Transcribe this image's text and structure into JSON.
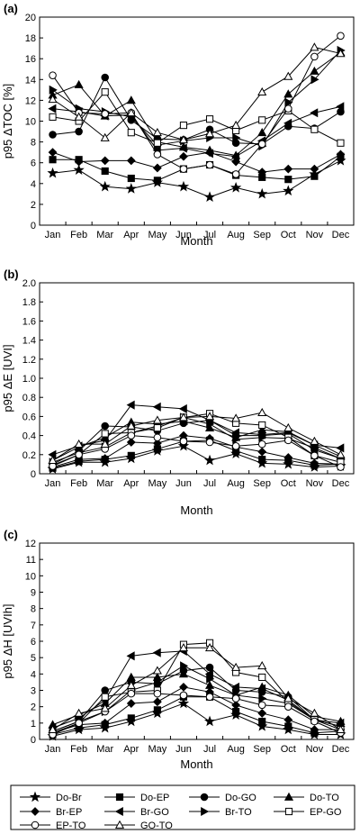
{
  "series_names": [
    "Do-Br",
    "Do-EP",
    "Do-GO",
    "Do-TO",
    "Br-EP",
    "Br-GO",
    "Br-TO",
    "EP-GO",
    "EP-TO",
    "GO-TO"
  ],
  "series_markers": [
    "star",
    "square-filled",
    "circle-filled",
    "triangle-filled",
    "diamond-filled",
    "triangle-left-filled",
    "triangle-right-filled",
    "square-open",
    "circle-open",
    "triangle-open"
  ],
  "chart_data": [
    {
      "type": "line",
      "panel_label": "(a)",
      "title": "",
      "xlabel": "Month",
      "ylabel": "p95 ΔTOC [%]",
      "categories": [
        "Jan",
        "Feb",
        "Mar",
        "Apr",
        "May",
        "Jun",
        "Jul",
        "Aug",
        "Sep",
        "Oct",
        "Nov",
        "Dec"
      ],
      "ylim": [
        0,
        20
      ],
      "yticks": [
        0,
        2,
        4,
        6,
        8,
        10,
        12,
        14,
        16,
        18,
        20
      ],
      "ytick_labels": [
        "0",
        "2",
        "4",
        "6",
        "8",
        "10",
        "12",
        "14",
        "16",
        "18",
        "20"
      ],
      "series": [
        {
          "name": "Do-Br",
          "values": [
            5.0,
            5.3,
            3.7,
            3.5,
            4.1,
            3.7,
            2.7,
            3.6,
            3.0,
            3.3,
            4.9,
            6.2
          ]
        },
        {
          "name": "Do-EP",
          "values": [
            6.3,
            6.3,
            5.2,
            4.5,
            4.3,
            5.4,
            5.8,
            4.8,
            4.6,
            4.4,
            4.7,
            6.6
          ]
        },
        {
          "name": "Do-GO",
          "values": [
            8.7,
            9.0,
            14.2,
            10.1,
            8.3,
            8.2,
            9.2,
            7.9,
            7.8,
            9.5,
            9.3,
            10.9
          ]
        },
        {
          "name": "Do-TO",
          "values": [
            12.5,
            13.5,
            10.5,
            12.0,
            8.0,
            7.5,
            7.2,
            6.7,
            8.9,
            12.6,
            14.8,
            16.6
          ]
        },
        {
          "name": "Br-EP",
          "values": [
            7.0,
            6.1,
            6.2,
            6.2,
            5.5,
            6.6,
            7.0,
            6.1,
            5.1,
            5.4,
            5.4,
            6.8
          ]
        },
        {
          "name": "Br-GO",
          "values": [
            11.2,
            10.9,
            10.5,
            10.6,
            7.2,
            7.4,
            6.9,
            6.6,
            8.1,
            9.8,
            10.8,
            11.4
          ]
        },
        {
          "name": "Br-TO",
          "values": [
            13.0,
            11.2,
            10.9,
            10.4,
            7.7,
            8.1,
            8.4,
            8.4,
            7.6,
            11.8,
            14.0,
            16.8
          ]
        },
        {
          "name": "EP-GO",
          "values": [
            10.4,
            10.0,
            12.8,
            8.9,
            7.9,
            9.6,
            10.2,
            9.1,
            10.1,
            11.0,
            9.2,
            7.9
          ]
        },
        {
          "name": "EP-TO",
          "values": [
            14.4,
            10.8,
            10.7,
            10.8,
            6.8,
            5.4,
            5.8,
            4.9,
            7.8,
            11.2,
            16.2,
            18.2
          ]
        },
        {
          "name": "GO-TO",
          "values": [
            12.1,
            10.4,
            8.4,
            10.8,
            8.9,
            8.2,
            8.8,
            9.6,
            12.8,
            14.3,
            17.1,
            16.5
          ]
        }
      ]
    },
    {
      "type": "line",
      "panel_label": "(b)",
      "title": "",
      "xlabel": "Month",
      "ylabel": "p95 ΔE [UVI]",
      "categories": [
        "Jan",
        "Feb",
        "Mar",
        "Apr",
        "May",
        "Jun",
        "Jul",
        "Aug",
        "Sep",
        "Oct",
        "Nov",
        "Dec"
      ],
      "ylim": [
        0,
        2
      ],
      "yticks": [
        0,
        0.2,
        0.4,
        0.6,
        0.8,
        1.0,
        1.2,
        1.4,
        1.6,
        1.8,
        2.0
      ],
      "ytick_labels": [
        "0",
        "0.2",
        "0.4",
        "0.6",
        "0.8",
        "1.0",
        "1.2",
        "1.4",
        "1.6",
        "1.8",
        "2.0"
      ],
      "series": [
        {
          "name": "Do-Br",
          "values": [
            0.05,
            0.12,
            0.12,
            0.16,
            0.24,
            0.29,
            0.14,
            0.21,
            0.11,
            0.1,
            0.07,
            0.08
          ]
        },
        {
          "name": "Do-EP",
          "values": [
            0.06,
            0.13,
            0.15,
            0.19,
            0.26,
            0.34,
            0.35,
            0.24,
            0.15,
            0.14,
            0.09,
            0.1
          ]
        },
        {
          "name": "Do-GO",
          "values": [
            0.1,
            0.24,
            0.5,
            0.49,
            0.45,
            0.53,
            0.56,
            0.4,
            0.4,
            0.42,
            0.25,
            0.16
          ]
        },
        {
          "name": "Do-TO",
          "values": [
            0.14,
            0.28,
            0.38,
            0.54,
            0.52,
            0.55,
            0.48,
            0.38,
            0.46,
            0.44,
            0.3,
            0.18
          ]
        },
        {
          "name": "Br-EP",
          "values": [
            0.07,
            0.15,
            0.16,
            0.33,
            0.32,
            0.4,
            0.37,
            0.28,
            0.23,
            0.17,
            0.11,
            0.1
          ]
        },
        {
          "name": "Br-GO",
          "values": [
            0.2,
            0.29,
            0.35,
            0.72,
            0.7,
            0.68,
            0.56,
            0.43,
            0.41,
            0.43,
            0.3,
            0.27
          ]
        },
        {
          "name": "Br-TO",
          "values": [
            0.12,
            0.22,
            0.28,
            0.43,
            0.5,
            0.59,
            0.52,
            0.36,
            0.38,
            0.37,
            0.27,
            0.16
          ]
        },
        {
          "name": "EP-GO",
          "values": [
            0.09,
            0.2,
            0.42,
            0.43,
            0.48,
            0.59,
            0.63,
            0.53,
            0.51,
            0.38,
            0.19,
            0.12
          ]
        },
        {
          "name": "EP-TO",
          "values": [
            0.08,
            0.2,
            0.26,
            0.4,
            0.38,
            0.34,
            0.33,
            0.29,
            0.31,
            0.35,
            0.19,
            0.07
          ]
        },
        {
          "name": "GO-TO",
          "values": [
            0.14,
            0.31,
            0.31,
            0.5,
            0.56,
            0.59,
            0.6,
            0.58,
            0.64,
            0.48,
            0.34,
            0.2
          ]
        }
      ]
    },
    {
      "type": "line",
      "panel_label": "(c)",
      "title": "",
      "xlabel": "Month",
      "ylabel": "p95 ΔH [UVIh]",
      "categories": [
        "Jan",
        "Feb",
        "Mar",
        "Apr",
        "May",
        "Jun",
        "Jul",
        "Aug",
        "Sep",
        "Oct",
        "Nov",
        "Dec"
      ],
      "ylim": [
        0,
        12
      ],
      "yticks": [
        0,
        1,
        2,
        3,
        4,
        5,
        6,
        7,
        8,
        9,
        10,
        11,
        12
      ],
      "ytick_labels": [
        "0",
        "1",
        "2",
        "3",
        "4",
        "5",
        "6",
        "7",
        "8",
        "9",
        "10",
        "11",
        "12"
      ],
      "series": [
        {
          "name": "Do-Br",
          "values": [
            0.2,
            0.6,
            0.7,
            1.1,
            1.6,
            2.2,
            1.1,
            1.5,
            0.8,
            0.6,
            0.3,
            0.3
          ]
        },
        {
          "name": "Do-EP",
          "values": [
            0.3,
            0.7,
            0.9,
            1.3,
            1.8,
            2.6,
            2.6,
            1.7,
            1.1,
            0.8,
            0.4,
            0.5
          ]
        },
        {
          "name": "Do-GO",
          "values": [
            0.5,
            1.1,
            3.0,
            3.5,
            3.4,
            4.2,
            4.4,
            3.0,
            2.9,
            2.6,
            1.2,
            0.8
          ]
        },
        {
          "name": "Do-TO",
          "values": [
            0.9,
            1.5,
            2.2,
            3.8,
            3.8,
            4.0,
            3.3,
            2.7,
            3.2,
            2.7,
            1.4,
            1.1
          ]
        },
        {
          "name": "Br-EP",
          "values": [
            0.4,
            0.9,
            1.0,
            2.2,
            2.3,
            3.2,
            2.9,
            2.1,
            1.6,
            1.2,
            0.6,
            0.6
          ]
        },
        {
          "name": "Br-GO",
          "values": [
            0.7,
            1.3,
            2.4,
            5.1,
            5.3,
            5.4,
            4.0,
            3.2,
            3.1,
            2.4,
            1.2,
            1.0
          ]
        },
        {
          "name": "Br-TO",
          "values": [
            0.5,
            1.1,
            1.7,
            3.0,
            3.5,
            4.5,
            3.7,
            2.7,
            2.5,
            2.2,
            1.2,
            0.8
          ]
        },
        {
          "name": "EP-GO",
          "values": [
            0.4,
            1.0,
            2.6,
            2.9,
            3.0,
            5.8,
            5.9,
            4.1,
            3.8,
            2.3,
            1.2,
            0.6
          ]
        },
        {
          "name": "EP-TO",
          "values": [
            0.3,
            1.0,
            1.7,
            2.8,
            2.8,
            2.7,
            2.6,
            2.5,
            2.1,
            2.0,
            1.1,
            0.4
          ]
        },
        {
          "name": "GO-TO",
          "values": [
            0.6,
            1.6,
            1.9,
            3.3,
            4.2,
            5.6,
            5.6,
            4.4,
            4.5,
            2.5,
            1.6,
            0.6
          ]
        }
      ]
    }
  ]
}
